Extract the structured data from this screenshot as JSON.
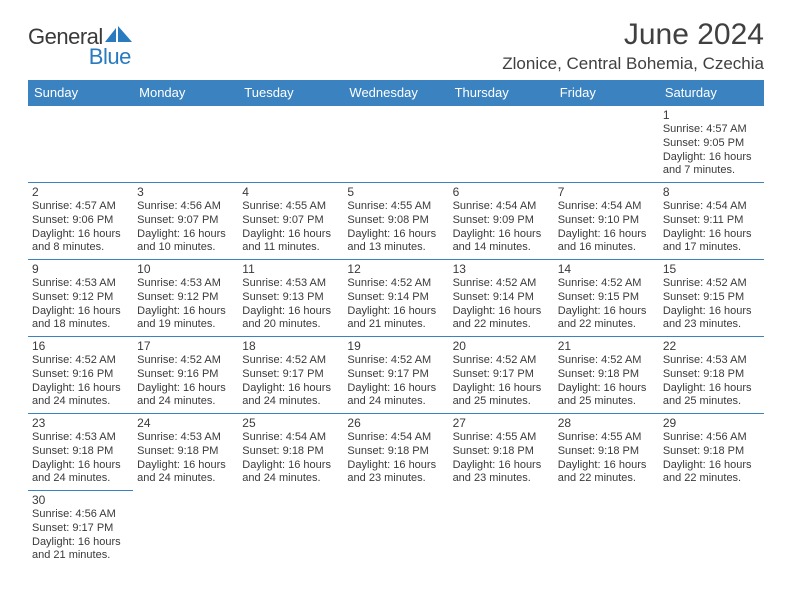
{
  "logo": {
    "general": "General",
    "blue": "Blue"
  },
  "title": "June 2024",
  "location": "Zlonice, Central Bohemia, Czechia",
  "colors": {
    "header_bg": "#3b83c0",
    "header_text": "#ffffff",
    "text": "#3a3a3a",
    "logo_blue": "#2a7abf",
    "border": "#3b83c0"
  },
  "weekday_labels": [
    "Sunday",
    "Monday",
    "Tuesday",
    "Wednesday",
    "Thursday",
    "Friday",
    "Saturday"
  ],
  "weeks": [
    [
      null,
      null,
      null,
      null,
      null,
      null,
      {
        "n": "1",
        "sunrise": "4:57 AM",
        "sunset": "9:05 PM",
        "daylight": "16 hours and 7 minutes."
      }
    ],
    [
      {
        "n": "2",
        "sunrise": "4:57 AM",
        "sunset": "9:06 PM",
        "daylight": "16 hours and 8 minutes."
      },
      {
        "n": "3",
        "sunrise": "4:56 AM",
        "sunset": "9:07 PM",
        "daylight": "16 hours and 10 minutes."
      },
      {
        "n": "4",
        "sunrise": "4:55 AM",
        "sunset": "9:07 PM",
        "daylight": "16 hours and 11 minutes."
      },
      {
        "n": "5",
        "sunrise": "4:55 AM",
        "sunset": "9:08 PM",
        "daylight": "16 hours and 13 minutes."
      },
      {
        "n": "6",
        "sunrise": "4:54 AM",
        "sunset": "9:09 PM",
        "daylight": "16 hours and 14 minutes."
      },
      {
        "n": "7",
        "sunrise": "4:54 AM",
        "sunset": "9:10 PM",
        "daylight": "16 hours and 16 minutes."
      },
      {
        "n": "8",
        "sunrise": "4:54 AM",
        "sunset": "9:11 PM",
        "daylight": "16 hours and 17 minutes."
      }
    ],
    [
      {
        "n": "9",
        "sunrise": "4:53 AM",
        "sunset": "9:12 PM",
        "daylight": "16 hours and 18 minutes."
      },
      {
        "n": "10",
        "sunrise": "4:53 AM",
        "sunset": "9:12 PM",
        "daylight": "16 hours and 19 minutes."
      },
      {
        "n": "11",
        "sunrise": "4:53 AM",
        "sunset": "9:13 PM",
        "daylight": "16 hours and 20 minutes."
      },
      {
        "n": "12",
        "sunrise": "4:52 AM",
        "sunset": "9:14 PM",
        "daylight": "16 hours and 21 minutes."
      },
      {
        "n": "13",
        "sunrise": "4:52 AM",
        "sunset": "9:14 PM",
        "daylight": "16 hours and 22 minutes."
      },
      {
        "n": "14",
        "sunrise": "4:52 AM",
        "sunset": "9:15 PM",
        "daylight": "16 hours and 22 minutes."
      },
      {
        "n": "15",
        "sunrise": "4:52 AM",
        "sunset": "9:15 PM",
        "daylight": "16 hours and 23 minutes."
      }
    ],
    [
      {
        "n": "16",
        "sunrise": "4:52 AM",
        "sunset": "9:16 PM",
        "daylight": "16 hours and 24 minutes."
      },
      {
        "n": "17",
        "sunrise": "4:52 AM",
        "sunset": "9:16 PM",
        "daylight": "16 hours and 24 minutes."
      },
      {
        "n": "18",
        "sunrise": "4:52 AM",
        "sunset": "9:17 PM",
        "daylight": "16 hours and 24 minutes."
      },
      {
        "n": "19",
        "sunrise": "4:52 AM",
        "sunset": "9:17 PM",
        "daylight": "16 hours and 24 minutes."
      },
      {
        "n": "20",
        "sunrise": "4:52 AM",
        "sunset": "9:17 PM",
        "daylight": "16 hours and 25 minutes."
      },
      {
        "n": "21",
        "sunrise": "4:52 AM",
        "sunset": "9:18 PM",
        "daylight": "16 hours and 25 minutes."
      },
      {
        "n": "22",
        "sunrise": "4:53 AM",
        "sunset": "9:18 PM",
        "daylight": "16 hours and 25 minutes."
      }
    ],
    [
      {
        "n": "23",
        "sunrise": "4:53 AM",
        "sunset": "9:18 PM",
        "daylight": "16 hours and 24 minutes."
      },
      {
        "n": "24",
        "sunrise": "4:53 AM",
        "sunset": "9:18 PM",
        "daylight": "16 hours and 24 minutes."
      },
      {
        "n": "25",
        "sunrise": "4:54 AM",
        "sunset": "9:18 PM",
        "daylight": "16 hours and 24 minutes."
      },
      {
        "n": "26",
        "sunrise": "4:54 AM",
        "sunset": "9:18 PM",
        "daylight": "16 hours and 23 minutes."
      },
      {
        "n": "27",
        "sunrise": "4:55 AM",
        "sunset": "9:18 PM",
        "daylight": "16 hours and 23 minutes."
      },
      {
        "n": "28",
        "sunrise": "4:55 AM",
        "sunset": "9:18 PM",
        "daylight": "16 hours and 22 minutes."
      },
      {
        "n": "29",
        "sunrise": "4:56 AM",
        "sunset": "9:18 PM",
        "daylight": "16 hours and 22 minutes."
      }
    ],
    [
      {
        "n": "30",
        "sunrise": "4:56 AM",
        "sunset": "9:17 PM",
        "daylight": "16 hours and 21 minutes."
      },
      null,
      null,
      null,
      null,
      null,
      null
    ]
  ],
  "labels": {
    "sunrise": "Sunrise: ",
    "sunset": "Sunset: ",
    "daylight": "Daylight: "
  }
}
